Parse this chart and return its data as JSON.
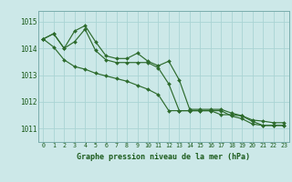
{
  "title": "Graphe pression niveau de la mer (hPa)",
  "background_color": "#cce8e8",
  "grid_color": "#aad4d4",
  "line_color": "#2d6b2d",
  "xlim": [
    -0.5,
    23.5
  ],
  "ylim": [
    1010.5,
    1015.4
  ],
  "yticks": [
    1011,
    1012,
    1013,
    1014,
    1015
  ],
  "xticks": [
    0,
    1,
    2,
    3,
    4,
    5,
    6,
    7,
    8,
    9,
    10,
    11,
    12,
    13,
    14,
    15,
    16,
    17,
    18,
    19,
    20,
    21,
    22,
    23
  ],
  "series1_x": [
    0,
    1,
    2,
    3,
    4,
    5,
    6,
    7,
    8,
    9,
    10,
    11,
    12,
    13,
    14,
    15,
    16,
    17,
    18,
    19,
    20,
    21,
    22,
    23
  ],
  "series1_y": [
    1014.35,
    1014.55,
    1014.0,
    1014.65,
    1014.85,
    1014.25,
    1013.72,
    1013.62,
    1013.62,
    1013.82,
    1013.52,
    1013.35,
    1013.52,
    1012.82,
    1011.72,
    1011.72,
    1011.72,
    1011.72,
    1011.58,
    1011.48,
    1011.32,
    1011.28,
    1011.22,
    1011.22
  ],
  "series2_x": [
    0,
    1,
    2,
    3,
    4,
    5,
    6,
    7,
    8,
    9,
    10,
    11,
    12,
    13,
    14,
    15,
    16,
    17,
    18,
    19,
    20,
    21,
    22,
    23
  ],
  "series2_y": [
    1014.35,
    1014.55,
    1014.0,
    1014.25,
    1014.72,
    1013.92,
    1013.57,
    1013.47,
    1013.47,
    1013.47,
    1013.47,
    1013.27,
    1012.67,
    1011.67,
    1011.67,
    1011.67,
    1011.67,
    1011.67,
    1011.47,
    1011.37,
    1011.17,
    1011.12,
    1011.12,
    1011.12
  ],
  "series3_x": [
    0,
    1,
    2,
    3,
    4,
    5,
    6,
    7,
    8,
    9,
    10,
    11,
    12,
    13,
    14,
    15,
    16,
    17,
    18,
    19,
    20,
    21,
    22,
    23
  ],
  "series3_y": [
    1014.35,
    1014.05,
    1013.57,
    1013.32,
    1013.22,
    1013.07,
    1012.97,
    1012.87,
    1012.77,
    1012.62,
    1012.47,
    1012.27,
    1011.67,
    1011.67,
    1011.67,
    1011.67,
    1011.67,
    1011.52,
    1011.52,
    1011.47,
    1011.27,
    1011.12,
    1011.12,
    1011.12
  ]
}
